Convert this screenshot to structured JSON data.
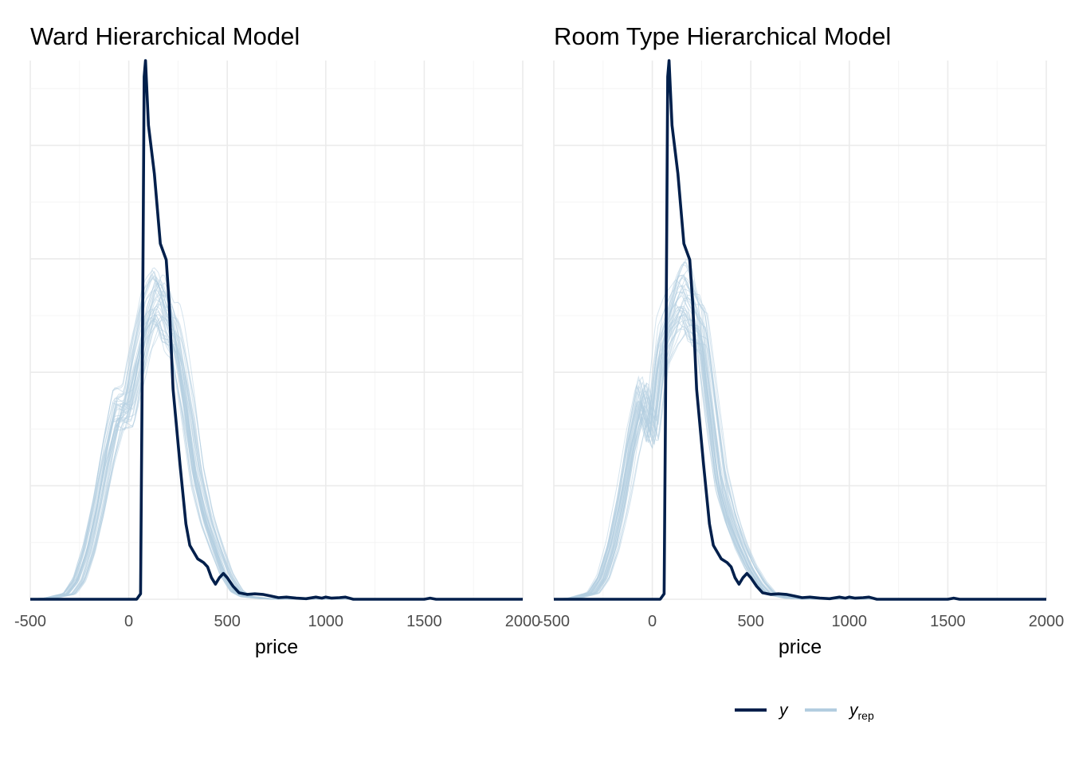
{
  "colors": {
    "y": "#011f4b",
    "yrep": "#b3cde0",
    "grid_major": "#ebebeb",
    "grid_minor": "#f4f4f4",
    "text": "#000000",
    "tick_text": "#4d4d4d"
  },
  "legend": {
    "y_label": "y",
    "yrep_base": "y",
    "yrep_sub": "rep"
  },
  "chart_data": [
    {
      "type": "line",
      "title": "Ward Hierarchical Model",
      "xlabel": "price",
      "ylabel": "",
      "xlim": [
        -500,
        2000
      ],
      "x_ticks": [
        -500,
        0,
        500,
        1000,
        1500,
        2000
      ],
      "x_tick_labels": [
        "-500",
        "0",
        "500",
        "1000",
        "1500",
        "2000"
      ],
      "y_axis": "unlabeled density",
      "grid": true,
      "legend_position": "bottom",
      "series": [
        {
          "name": "y",
          "points": [
            [
              -500,
              0
            ],
            [
              40,
              0
            ],
            [
              60,
              0.01
            ],
            [
              70,
              0.5
            ],
            [
              78,
              0.97
            ],
            [
              85,
              1.0
            ],
            [
              100,
              0.88
            ],
            [
              130,
              0.79
            ],
            [
              160,
              0.66
            ],
            [
              190,
              0.63
            ],
            [
              205,
              0.55
            ],
            [
              225,
              0.39
            ],
            [
              260,
              0.25
            ],
            [
              290,
              0.14
            ],
            [
              310,
              0.1
            ],
            [
              350,
              0.075
            ],
            [
              380,
              0.068
            ],
            [
              400,
              0.06
            ],
            [
              420,
              0.04
            ],
            [
              440,
              0.028
            ],
            [
              460,
              0.04
            ],
            [
              480,
              0.048
            ],
            [
              500,
              0.04
            ],
            [
              530,
              0.024
            ],
            [
              560,
              0.012
            ],
            [
              600,
              0.009
            ],
            [
              640,
              0.01
            ],
            [
              680,
              0.009
            ],
            [
              720,
              0.006
            ],
            [
              760,
              0.003
            ],
            [
              800,
              0.004
            ],
            [
              850,
              0.002
            ],
            [
              900,
              0.001
            ],
            [
              950,
              0.004
            ],
            [
              980,
              0.002
            ],
            [
              1000,
              0.004
            ],
            [
              1030,
              0.002
            ],
            [
              1070,
              0.003
            ],
            [
              1100,
              0.004
            ],
            [
              1140,
              0.0
            ],
            [
              1350,
              0.0
            ],
            [
              1500,
              0.0
            ],
            [
              1530,
              0.002
            ],
            [
              1560,
              0.0
            ],
            [
              2000,
              0
            ]
          ]
        },
        {
          "name": "y_rep",
          "draws": 40,
          "points": [
            [
              -500,
              0
            ],
            [
              -400,
              0.002
            ],
            [
              -300,
              0.01
            ],
            [
              -250,
              0.035
            ],
            [
              -200,
              0.09
            ],
            [
              -150,
              0.17
            ],
            [
              -100,
              0.27
            ],
            [
              -50,
              0.35
            ],
            [
              0,
              0.35
            ],
            [
              50,
              0.44
            ],
            [
              100,
              0.52
            ],
            [
              150,
              0.56
            ],
            [
              180,
              0.54
            ],
            [
              200,
              0.51
            ],
            [
              230,
              0.5
            ],
            [
              250,
              0.47
            ],
            [
              300,
              0.36
            ],
            [
              350,
              0.23
            ],
            [
              400,
              0.15
            ],
            [
              450,
              0.095
            ],
            [
              500,
              0.045
            ],
            [
              550,
              0.015
            ],
            [
              600,
              0.005
            ],
            [
              700,
              0.001
            ],
            [
              800,
              0
            ],
            [
              2000,
              0
            ]
          ]
        }
      ]
    },
    {
      "type": "line",
      "title": "Room Type Hierarchical Model",
      "xlabel": "price",
      "ylabel": "",
      "xlim": [
        -500,
        2000
      ],
      "x_ticks": [
        -500,
        0,
        500,
        1000,
        1500,
        2000
      ],
      "x_tick_labels": [
        "-500",
        "0",
        "500",
        "1000",
        "1500",
        "2000"
      ],
      "y_axis": "unlabeled density",
      "grid": true,
      "legend_position": "bottom",
      "series": [
        {
          "name": "y",
          "points": [
            [
              -500,
              0
            ],
            [
              40,
              0
            ],
            [
              60,
              0.01
            ],
            [
              70,
              0.5
            ],
            [
              78,
              0.97
            ],
            [
              85,
              1.0
            ],
            [
              100,
              0.88
            ],
            [
              130,
              0.79
            ],
            [
              160,
              0.66
            ],
            [
              190,
              0.63
            ],
            [
              205,
              0.55
            ],
            [
              225,
              0.39
            ],
            [
              260,
              0.25
            ],
            [
              290,
              0.14
            ],
            [
              310,
              0.1
            ],
            [
              350,
              0.075
            ],
            [
              380,
              0.068
            ],
            [
              400,
              0.06
            ],
            [
              420,
              0.04
            ],
            [
              440,
              0.028
            ],
            [
              460,
              0.04
            ],
            [
              480,
              0.048
            ],
            [
              500,
              0.04
            ],
            [
              530,
              0.024
            ],
            [
              560,
              0.012
            ],
            [
              600,
              0.009
            ],
            [
              640,
              0.01
            ],
            [
              680,
              0.009
            ],
            [
              720,
              0.006
            ],
            [
              760,
              0.003
            ],
            [
              800,
              0.004
            ],
            [
              850,
              0.002
            ],
            [
              900,
              0.001
            ],
            [
              950,
              0.004
            ],
            [
              980,
              0.002
            ],
            [
              1000,
              0.004
            ],
            [
              1030,
              0.002
            ],
            [
              1070,
              0.003
            ],
            [
              1100,
              0.004
            ],
            [
              1140,
              0.0
            ],
            [
              1350,
              0.0
            ],
            [
              1500,
              0.0
            ],
            [
              1530,
              0.002
            ],
            [
              1560,
              0.0
            ],
            [
              2000,
              0
            ]
          ]
        },
        {
          "name": "y_rep",
          "draws": 40,
          "points": [
            [
              -500,
              0
            ],
            [
              -400,
              0.002
            ],
            [
              -300,
              0.012
            ],
            [
              -250,
              0.04
            ],
            [
              -200,
              0.1
            ],
            [
              -150,
              0.19
            ],
            [
              -100,
              0.3
            ],
            [
              -50,
              0.38
            ],
            [
              0,
              0.31
            ],
            [
              50,
              0.47
            ],
            [
              100,
              0.53
            ],
            [
              150,
              0.57
            ],
            [
              180,
              0.56
            ],
            [
              200,
              0.53
            ],
            [
              250,
              0.51
            ],
            [
              300,
              0.36
            ],
            [
              350,
              0.22
            ],
            [
              400,
              0.15
            ],
            [
              450,
              0.1
            ],
            [
              500,
              0.06
            ],
            [
              550,
              0.03
            ],
            [
              600,
              0.01
            ],
            [
              700,
              0.002
            ],
            [
              800,
              0
            ],
            [
              2000,
              0
            ]
          ]
        }
      ]
    }
  ]
}
